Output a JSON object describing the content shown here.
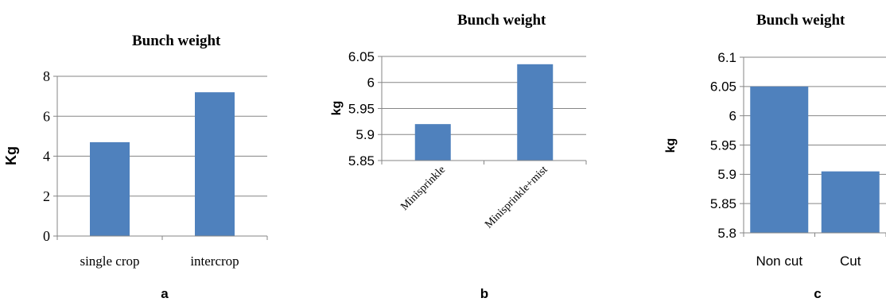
{
  "colors": {
    "bar": "#4f81bd",
    "grid": "#868686",
    "text": "#000000"
  },
  "chart_data": [
    {
      "panel": "a",
      "type": "bar",
      "title": "Bunch weight",
      "ylabel": "Kg",
      "xlabel": "",
      "categories": [
        "single crop",
        "intercrop"
      ],
      "values": [
        4.7,
        7.2
      ],
      "ylim": [
        0,
        8
      ],
      "yticks": [
        "0",
        "2",
        "4",
        "6",
        "8"
      ],
      "grid": true,
      "legend": "none"
    },
    {
      "panel": "b",
      "type": "bar",
      "title": "Bunch weight",
      "ylabel": "kg",
      "xlabel": "",
      "categories": [
        "Minisprinkle",
        "Minisprinkle+mist"
      ],
      "values": [
        5.92,
        6.035
      ],
      "ylim": [
        5.85,
        6.05
      ],
      "yticks": [
        "5.85",
        "5.9",
        "5.95",
        "6",
        "6.05"
      ],
      "grid": true,
      "legend": "none",
      "category_labels_rotated": true
    },
    {
      "panel": "c",
      "type": "bar",
      "title": "Bunch weight",
      "ylabel": "kg",
      "xlabel": "",
      "categories": [
        "Non cut",
        "Cut"
      ],
      "values": [
        6.05,
        5.905
      ],
      "ylim": [
        5.8,
        6.1
      ],
      "yticks": [
        "5.8",
        "5.85",
        "5.9",
        "5.95",
        "6",
        "6.05",
        "6.1"
      ],
      "grid": true,
      "legend": "none"
    }
  ]
}
